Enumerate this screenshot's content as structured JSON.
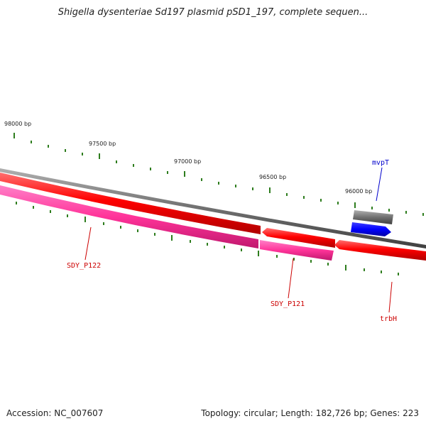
{
  "title": "Shigella dysenteriae Sd197 plasmid pSD1_197, complete sequen...",
  "ticks": [
    "98000 bp",
    "97500 bp",
    "97000 bp",
    "96500 bp",
    "96000 bp"
  ],
  "genes": {
    "mvpT": "mvpT",
    "sdy_p122": "SDY_P122",
    "sdy_p121": "SDY_P121",
    "trbH": "trbH"
  },
  "colors": {
    "backbone": "#888888",
    "forward_cds": "#ff0000",
    "reverse_cds": "#ff3399",
    "blue_feature": "#0000ff",
    "grey_feature": "#707070",
    "tick": "#2e7d1e",
    "label_red": "#cc0000",
    "label_blue": "#0000cc"
  },
  "footer": {
    "accession": "Accession: NC_007607",
    "summary": "Topology: circular; Length: 182,726 bp; Genes: 223"
  }
}
